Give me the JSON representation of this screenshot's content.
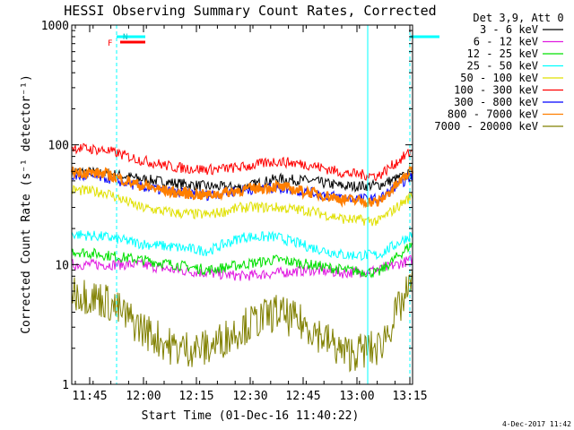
{
  "chart_data": {
    "type": "line",
    "title": "HESSI Observing Summary Count Rates, Corrected",
    "xlabel": "Start Time (01-Dec-16 11:40:22)",
    "ylabel": "Corrected Count Rate (s⁻¹ detector⁻¹)",
    "yscale": "log",
    "ylim": [
      1,
      1000
    ],
    "xlim_minutes_after_start": [
      0,
      100
    ],
    "x_ticks": [
      "11:45",
      "12:00",
      "12:15",
      "12:30",
      "12:45",
      "13:00",
      "13:15"
    ],
    "y_ticks": [
      "1",
      "10",
      "100",
      "1000"
    ],
    "legend_title": "Det 3,9, Att 0",
    "legend_position": "right",
    "timestamp": "4-Dec-2017 11:42",
    "flags": {
      "N_label": "N",
      "F_label": "F",
      "night_intervals": [
        [
          0,
          35
        ],
        [
          241,
          296
        ]
      ],
      "flare_interval": [
        37,
        55
      ],
      "dashed_times_px": [
        130,
        410,
        457
      ]
    },
    "series": [
      {
        "name": "3 - 6 keV",
        "color": "#000000",
        "x": [
          0,
          10,
          20,
          30,
          40,
          50,
          60,
          70,
          80,
          90,
          100
        ],
        "y": [
          60,
          58,
          52,
          48,
          45,
          44,
          52,
          50,
          45,
          46,
          58
        ]
      },
      {
        "name": "6 - 12 keV",
        "color": "#e01ae0",
        "x": [
          0,
          10,
          20,
          30,
          40,
          50,
          60,
          70,
          80,
          90,
          100
        ],
        "y": [
          10,
          10,
          10,
          9,
          8.5,
          8,
          8.5,
          9,
          8.5,
          9,
          11
        ]
      },
      {
        "name": "12 - 25 keV",
        "color": "#00e000",
        "x": [
          0,
          10,
          20,
          30,
          40,
          50,
          60,
          70,
          80,
          90,
          100
        ],
        "y": [
          13,
          12,
          11,
          10,
          9,
          10,
          11,
          10,
          9,
          8.5,
          15
        ]
      },
      {
        "name": "25 - 50 keV",
        "color": "#00ffff",
        "x": [
          0,
          10,
          20,
          30,
          40,
          50,
          60,
          70,
          80,
          90,
          100
        ],
        "y": [
          18,
          17,
          15,
          14,
          13,
          17,
          17,
          14,
          12,
          12,
          18
        ]
      },
      {
        "name": "50 - 100 keV",
        "color": "#e0e000",
        "x": [
          0,
          10,
          20,
          30,
          40,
          50,
          60,
          70,
          80,
          90,
          100
        ],
        "y": [
          42,
          40,
          30,
          27,
          26,
          30,
          30,
          28,
          24,
          23,
          38
        ]
      },
      {
        "name": "100 - 300 keV",
        "color": "#ff0000",
        "x": [
          0,
          10,
          20,
          30,
          40,
          50,
          60,
          70,
          80,
          90,
          100
        ],
        "y": [
          95,
          90,
          75,
          65,
          62,
          65,
          73,
          68,
          58,
          55,
          90
        ]
      },
      {
        "name": "300 - 800 keV",
        "color": "#0000ff",
        "x": [
          0,
          10,
          20,
          30,
          40,
          50,
          60,
          70,
          80,
          90,
          100
        ],
        "y": [
          55,
          53,
          45,
          40,
          38,
          42,
          44,
          40,
          36,
          35,
          56
        ]
      },
      {
        "name": "800 - 7000 keV",
        "color": "#ff7f00",
        "x": [
          0,
          10,
          20,
          30,
          40,
          50,
          60,
          70,
          80,
          90,
          100
        ],
        "y": [
          60,
          57,
          46,
          40,
          38,
          42,
          45,
          40,
          35,
          33,
          62
        ]
      },
      {
        "name": "7000 - 20000 keV",
        "color": "#808000",
        "x": [
          0,
          10,
          20,
          30,
          40,
          50,
          60,
          70,
          80,
          90,
          100
        ],
        "y": [
          6,
          5,
          3,
          2,
          2,
          3,
          4,
          3,
          1.8,
          2,
          7
        ]
      }
    ]
  }
}
